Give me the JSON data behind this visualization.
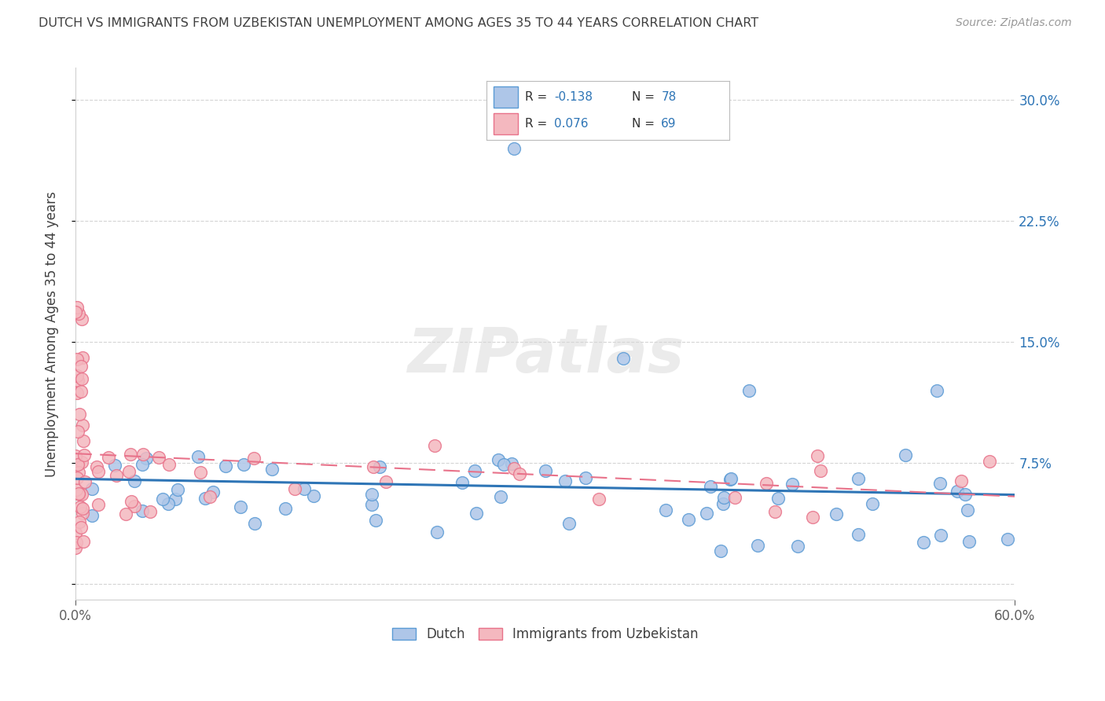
{
  "title": "DUTCH VS IMMIGRANTS FROM UZBEKISTAN UNEMPLOYMENT AMONG AGES 35 TO 44 YEARS CORRELATION CHART",
  "source": "Source: ZipAtlas.com",
  "ylabel": "Unemployment Among Ages 35 to 44 years",
  "xlim": [
    0.0,
    0.6
  ],
  "ylim": [
    -0.01,
    0.32
  ],
  "yticks": [
    0.0,
    0.075,
    0.15,
    0.225,
    0.3
  ],
  "right_ytick_labels": [
    "",
    "7.5%",
    "15.0%",
    "22.5%",
    "30.0%"
  ],
  "xticks": [
    0.0,
    0.6
  ],
  "xtick_labels": [
    "0.0%",
    "60.0%"
  ],
  "dutch_color": "#aec6e8",
  "uzbek_color": "#f4b8bf",
  "dutch_edge_color": "#5b9bd5",
  "uzbek_edge_color": "#e8728a",
  "trend_dutch_color": "#2e75b6",
  "trend_uzbek_color": "#e8728a",
  "R_dutch": -0.138,
  "N_dutch": 78,
  "R_uzbek": 0.076,
  "N_uzbek": 69,
  "legend_label_dutch": "Dutch",
  "legend_label_uzbek": "Immigrants from Uzbekistan",
  "watermark": "ZIPatlas",
  "background_color": "#ffffff",
  "grid_color": "#d0d0d0",
  "title_color": "#404040",
  "label_color": "#404040",
  "tick_color": "#606060",
  "right_tick_color": "#2e75b6"
}
